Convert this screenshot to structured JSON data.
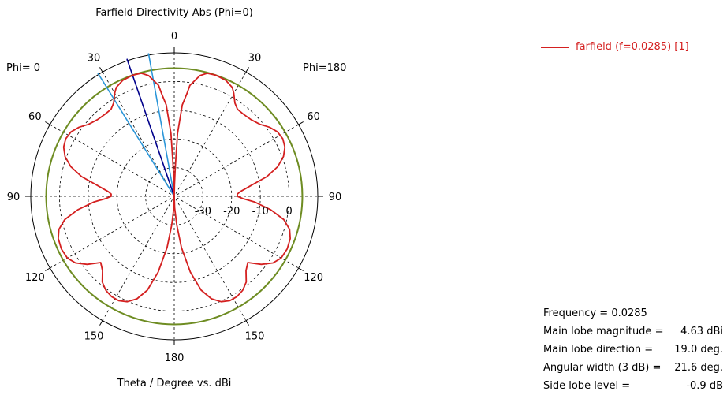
{
  "chart_data": {
    "type": "polar",
    "title": "Farfield Directivity Abs (Phi=0)",
    "xlabel": "Theta / Degree vs. dBi",
    "phi_left_label": "Phi=  0",
    "phi_right_label": "Phi=180",
    "r_range": [
      -40,
      10
    ],
    "radial_ticks": [
      {
        "value": -30,
        "label": "-30"
      },
      {
        "value": -20,
        "label": "-20"
      },
      {
        "value": -10,
        "label": "-10"
      },
      {
        "value": 0,
        "label": "0"
      }
    ],
    "angle_labels": [
      {
        "angle": 0,
        "label": "0"
      },
      {
        "angle": 30,
        "label": "30"
      },
      {
        "angle": 60,
        "label": "60"
      },
      {
        "angle": 90,
        "label": "90"
      },
      {
        "angle": 120,
        "label": "120"
      },
      {
        "angle": 150,
        "label": "150"
      },
      {
        "angle": 180,
        "label": "180"
      },
      {
        "angle": -30,
        "label": "30"
      },
      {
        "angle": -60,
        "label": "60"
      },
      {
        "angle": -90,
        "label": "90"
      },
      {
        "angle": -120,
        "label": "120"
      },
      {
        "angle": -150,
        "label": "150"
      }
    ],
    "reference_circle_dbi": 4.63,
    "main_lobe_direction_deg": 19.0,
    "beam_edges_deg": [
      10.2,
      31.8
    ],
    "series": [
      {
        "name": "farfield (f=0.0285) [1]",
        "color": "#d42020",
        "theta": [
          0,
          1,
          2,
          3,
          5,
          7,
          8,
          12,
          15,
          19,
          24,
          28,
          30,
          33,
          36,
          40,
          45,
          50,
          54,
          58,
          62,
          66,
          70,
          74,
          78,
          82,
          86,
          88,
          90,
          92,
          94,
          98,
          102,
          106,
          110,
          115,
          120,
          124,
          128,
          132,
          136,
          140,
          144,
          148,
          152,
          156,
          160,
          164,
          168,
          172,
          175,
          178,
          180
        ],
        "values": [
          -40,
          -36,
          -30,
          -18,
          -8,
          -4,
          -1,
          3,
          4.4,
          4.63,
          4.2,
          3,
          1.5,
          -1.2,
          -2.5,
          -2.6,
          -2.2,
          -1,
          1,
          2.4,
          2.8,
          2.2,
          0.5,
          -2.5,
          -7,
          -13,
          -17,
          -18,
          -18,
          -16,
          -12,
          -6,
          -1,
          1.8,
          3,
          3.4,
          3,
          1.5,
          -1.5,
          -5.5,
          -4,
          -1,
          0.5,
          1.2,
          1.2,
          0.2,
          -2,
          -6,
          -13,
          -22,
          -30,
          -36,
          -40
        ]
      }
    ]
  },
  "legend": {
    "label": "farfield (f=0.0285) [1]"
  },
  "info": {
    "frequency": "Frequency = 0.0285",
    "magnitude_key": "Main lobe magnitude =",
    "magnitude_val": "4.63 dBi",
    "direction_key": "Main lobe direction =",
    "direction_val": "19.0 deg.",
    "width_key": "Angular width (3 dB) =",
    "width_val": "21.6 deg.",
    "sidelobe_key": "Side lobe level =",
    "sidelobe_val": "-0.9 dB"
  },
  "colors": {
    "pattern": "#d42020",
    "reference_circle": "#6e8c22",
    "main_lobe_line": "#00008b",
    "beam_edge_lines": "#2a95d8",
    "grid": "#000000"
  }
}
